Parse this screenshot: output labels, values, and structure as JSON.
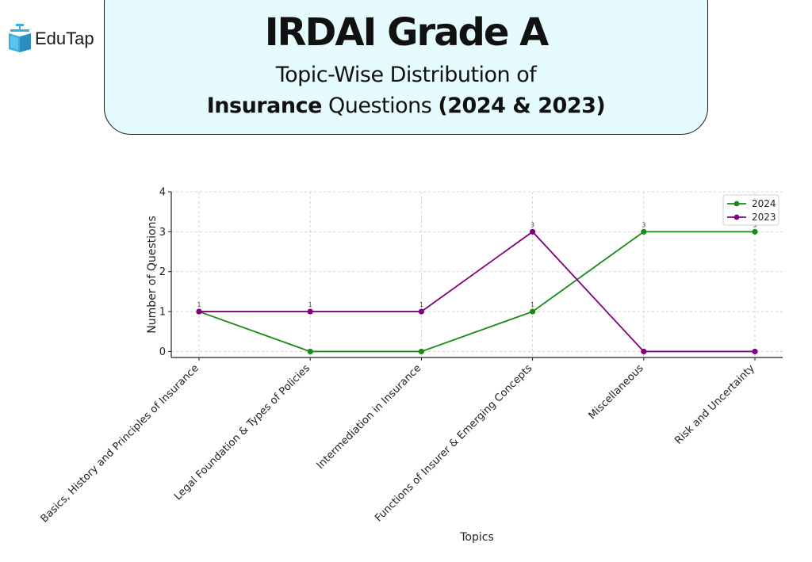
{
  "brand": {
    "name": "EduTap",
    "icon": "graduation-book-icon",
    "icon_color": "#3aaee0"
  },
  "header": {
    "title": "IRDAI Grade A",
    "subtitle_line1": "Topic-Wise Distribution of",
    "subtitle_line2_bold_a": "Insurance",
    "subtitle_line2_regular": "Questions",
    "subtitle_line2_bold_b": "(2024 & 2023)",
    "background": "#e6fbfd"
  },
  "chart_data": {
    "type": "line",
    "categories": [
      "Basics, History and Principles of Insurance",
      "Legal Foundation & Types of Policies",
      "Intermediation in Insurance",
      "Functions of Insurer & Emerging Concepts",
      "Miscellaneous",
      "Risk and Uncertainty"
    ],
    "series": [
      {
        "name": "2024",
        "values": [
          1,
          0,
          0,
          1,
          3,
          3
        ],
        "color": "#1a8a1a"
      },
      {
        "name": "2023",
        "values": [
          1,
          1,
          1,
          3,
          0,
          0
        ],
        "color": "#800080"
      }
    ],
    "point_labels": [
      {
        "category_index": 0,
        "value": 1,
        "text": "1"
      },
      {
        "category_index": 1,
        "value": 1,
        "text": "1"
      },
      {
        "category_index": 2,
        "value": 1,
        "text": "1"
      },
      {
        "category_index": 3,
        "value": 3,
        "text": "3"
      },
      {
        "category_index": 3,
        "value": 1,
        "text": "1"
      },
      {
        "category_index": 4,
        "value": 3,
        "text": "3"
      },
      {
        "category_index": 5,
        "value": 3,
        "text": "3"
      }
    ],
    "xlabel": "Topics",
    "ylabel": "Number of Questions",
    "ylim": [
      -0.15,
      4
    ],
    "yticks": [
      0,
      1,
      2,
      3,
      4
    ],
    "grid": true,
    "legend_position": "top-right"
  }
}
